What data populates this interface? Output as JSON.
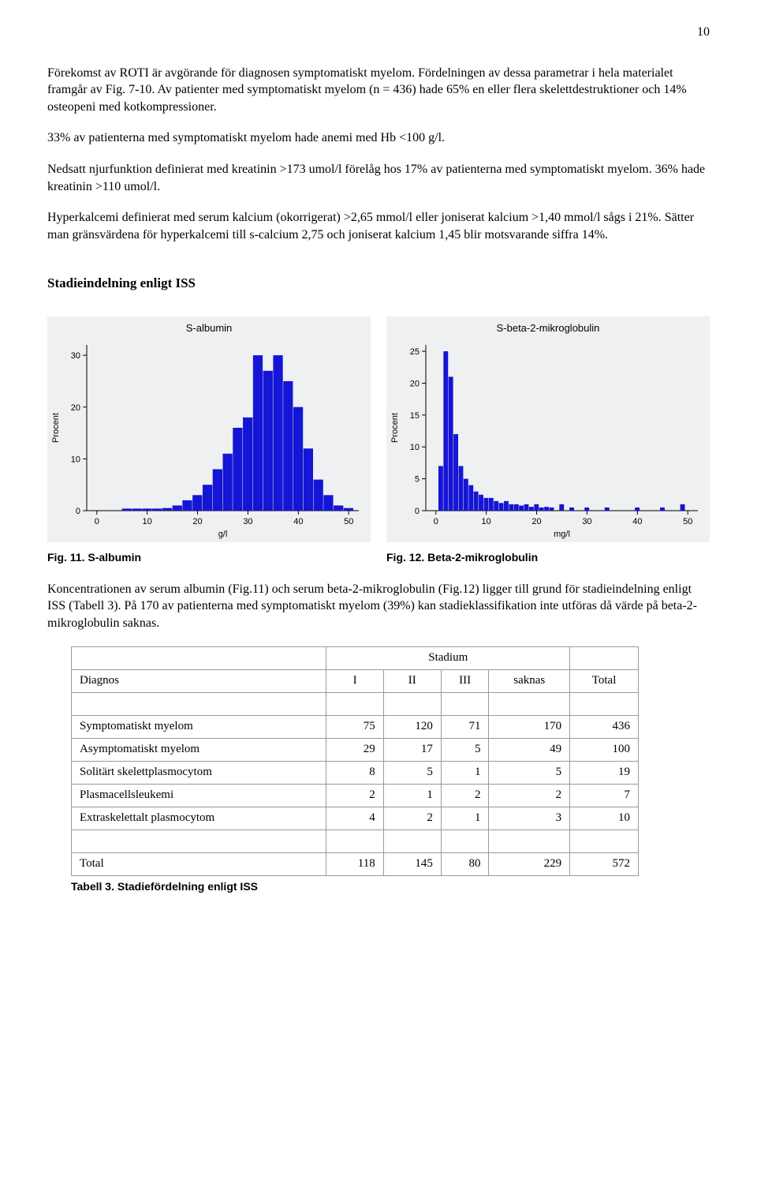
{
  "page_number": "10",
  "paragraphs": {
    "p1": "Förekomst av ROTI är avgörande för diagnosen symptomatiskt myelom. Fördelningen av dessa parametrar i hela materialet framgår av Fig. 7-10. Av patienter med symptomatiskt myelom (n = 436) hade 65% en eller flera skelettdestruktioner och 14% osteopeni med kotkompressioner.",
    "p2": "33% av patienterna med symptomatiskt myelom hade anemi med Hb <100 g/l.",
    "p3": "Nedsatt njurfunktion definierat med kreatinin >173 umol/l förelåg hos 17% av patienterna med symptomatiskt myelom. 36% hade kreatinin >110 umol/l.",
    "p4": "Hyperkalcemi definierat med serum kalcium (okorrigerat) >2,65 mmol/l eller joniserat kalcium >1,40 mmol/l sågs i 21%. Sätter man gränsvärdena för hyperkalcemi till s-calcium 2,75 och joniserat kalcium 1,45 blir motsvarande siffra 14%."
  },
  "section_heading": "Stadieindelning enligt ISS",
  "chart_left": {
    "title": "S-albumin",
    "ylabel": "Procent",
    "xlabel": "g/l",
    "caption": "Fig. 11. S-albumin",
    "background_color": "#eef0f2",
    "bar_color": "#1515d5",
    "axis_color": "#000000",
    "tick_color": "#000000",
    "text_color": "#000000",
    "font_family": "Arial",
    "xlim": [
      -2,
      52
    ],
    "ylim": [
      0,
      32
    ],
    "xticks": [
      0,
      10,
      20,
      30,
      40,
      50
    ],
    "yticks": [
      0,
      10,
      20,
      30
    ],
    "categories": [
      6,
      8,
      10,
      12,
      14,
      16,
      18,
      20,
      22,
      24,
      26,
      28,
      30,
      32,
      34,
      36,
      38,
      40,
      42,
      44,
      46,
      48,
      50
    ],
    "values": [
      0.4,
      0.4,
      0.4,
      0.4,
      0.5,
      1,
      2,
      3,
      5,
      8,
      11,
      16,
      18,
      30,
      27,
      30,
      25,
      20,
      12,
      6,
      3,
      1,
      0.5
    ],
    "bar_width": 2.0
  },
  "chart_right": {
    "title": "S-beta-2-mikroglobulin",
    "ylabel": "Procent",
    "xlabel": "mg/l",
    "caption": "Fig. 12. Beta-2-mikroglobulin",
    "background_color": "#eef0f2",
    "bar_color": "#1515d5",
    "axis_color": "#000000",
    "tick_color": "#000000",
    "text_color": "#000000",
    "font_family": "Arial",
    "xlim": [
      -2,
      52
    ],
    "ylim": [
      0,
      26
    ],
    "xticks": [
      0,
      10,
      20,
      30,
      40,
      50
    ],
    "yticks": [
      0,
      5,
      10,
      15,
      20,
      25
    ],
    "categories": [
      1,
      2,
      3,
      4,
      5,
      6,
      7,
      8,
      9,
      10,
      11,
      12,
      13,
      14,
      15,
      16,
      17,
      18,
      19,
      20,
      21,
      22,
      23,
      25,
      27,
      30,
      34,
      40,
      45,
      49
    ],
    "values": [
      7,
      25,
      21,
      12,
      7,
      5,
      4,
      3,
      2.5,
      2,
      2,
      1.5,
      1.2,
      1.5,
      1,
      1,
      0.8,
      1,
      0.6,
      1,
      0.5,
      0.6,
      0.5,
      1,
      0.5,
      0.5,
      0.5,
      0.5,
      0.5,
      1
    ],
    "bar_width": 1.0
  },
  "post_charts_paragraph": "Koncentrationen av serum albumin (Fig.11) och serum beta-2-mikroglobulin (Fig.12) ligger till grund för stadieindelning enligt ISS (Tabell 3). På 170 av patienterna med symptomatiskt myelom (39%) kan stadieklassifikation inte utföras då värde på beta-2-mikroglobulin saknas.",
  "table": {
    "top_header": "Stadium",
    "col_headers": [
      "Diagnos",
      "I",
      "II",
      "III",
      "saknas",
      "Total"
    ],
    "rows": [
      [
        "Symptomatiskt myelom",
        "75",
        "120",
        "71",
        "170",
        "436"
      ],
      [
        "Asymptomatiskt myelom",
        "29",
        "17",
        "5",
        "49",
        "100"
      ],
      [
        "Solitärt skelettplasmocytom",
        "8",
        "5",
        "1",
        "5",
        "19"
      ],
      [
        "Plasmacellsleukemi",
        "2",
        "1",
        "2",
        "2",
        "7"
      ],
      [
        "Extraskelettalt plasmocytom",
        "4",
        "2",
        "1",
        "3",
        "10"
      ]
    ],
    "total_row": [
      "Total",
      "118",
      "145",
      "80",
      "229",
      "572"
    ],
    "caption": "Tabell 3. Stadiefördelning enligt ISS"
  }
}
